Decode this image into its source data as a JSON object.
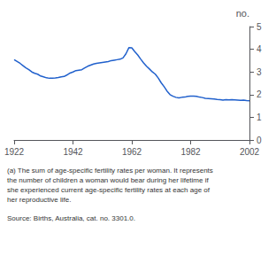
{
  "chart_data": {
    "type": "line",
    "ylabel": "no.",
    "annotations": [
      "(a) The sum of age-specific fertility rates per woman. It represents",
      "the number of children a woman would bear during her lifetime if",
      "she experienced current age-specific fertility rates at each age of",
      "her reproductive life.",
      "Source: Births, Australia, cat. no. 3301.0."
    ],
    "color": "#2060CC",
    "x": [
      1922,
      1923,
      1924,
      1925,
      1926,
      1927,
      1928,
      1929,
      1930,
      1931,
      1932,
      1933,
      1934,
      1935,
      1936,
      1937,
      1938,
      1939,
      1940,
      1941,
      1942,
      1943,
      1944,
      1945,
      1946,
      1947,
      1948,
      1949,
      1950,
      1951,
      1952,
      1953,
      1954,
      1955,
      1956,
      1957,
      1958,
      1959,
      1960,
      1961,
      1962,
      1963,
      1964,
      1965,
      1966,
      1967,
      1968,
      1969,
      1970,
      1971,
      1972,
      1973,
      1974,
      1975,
      1976,
      1977,
      1978,
      1979,
      1980,
      1981,
      1982,
      1983,
      1984,
      1985,
      1986,
      1987,
      1988,
      1989,
      1990,
      1991,
      1992,
      1993,
      1994,
      1995,
      1996,
      1997,
      1998,
      1999,
      2000,
      2001,
      2002
    ],
    "values": [
      3.54,
      3.46,
      3.38,
      3.28,
      3.18,
      3.1,
      3.0,
      2.94,
      2.9,
      2.82,
      2.78,
      2.74,
      2.72,
      2.72,
      2.73,
      2.75,
      2.78,
      2.8,
      2.87,
      2.95,
      3.0,
      3.06,
      3.08,
      3.1,
      3.18,
      3.25,
      3.3,
      3.35,
      3.38,
      3.4,
      3.42,
      3.44,
      3.46,
      3.5,
      3.52,
      3.54,
      3.56,
      3.62,
      3.8,
      4.07,
      4.06,
      3.9,
      3.75,
      3.57,
      3.4,
      3.25,
      3.13,
      3.0,
      2.9,
      2.73,
      2.52,
      2.35,
      2.15,
      2.0,
      1.93,
      1.88,
      1.86,
      1.88,
      1.89,
      1.92,
      1.93,
      1.93,
      1.92,
      1.89,
      1.87,
      1.84,
      1.83,
      1.82,
      1.81,
      1.79,
      1.78,
      1.76,
      1.78,
      1.77,
      1.78,
      1.77,
      1.76,
      1.75,
      1.76,
      1.74,
      1.73
    ],
    "xlim": [
      1922,
      2002
    ],
    "xticks": [
      1922,
      1942,
      1962,
      1982,
      2002
    ],
    "ylim": [
      0,
      5
    ],
    "yticks": [
      0,
      1,
      2,
      3,
      4,
      5
    ],
    "grid": false
  }
}
